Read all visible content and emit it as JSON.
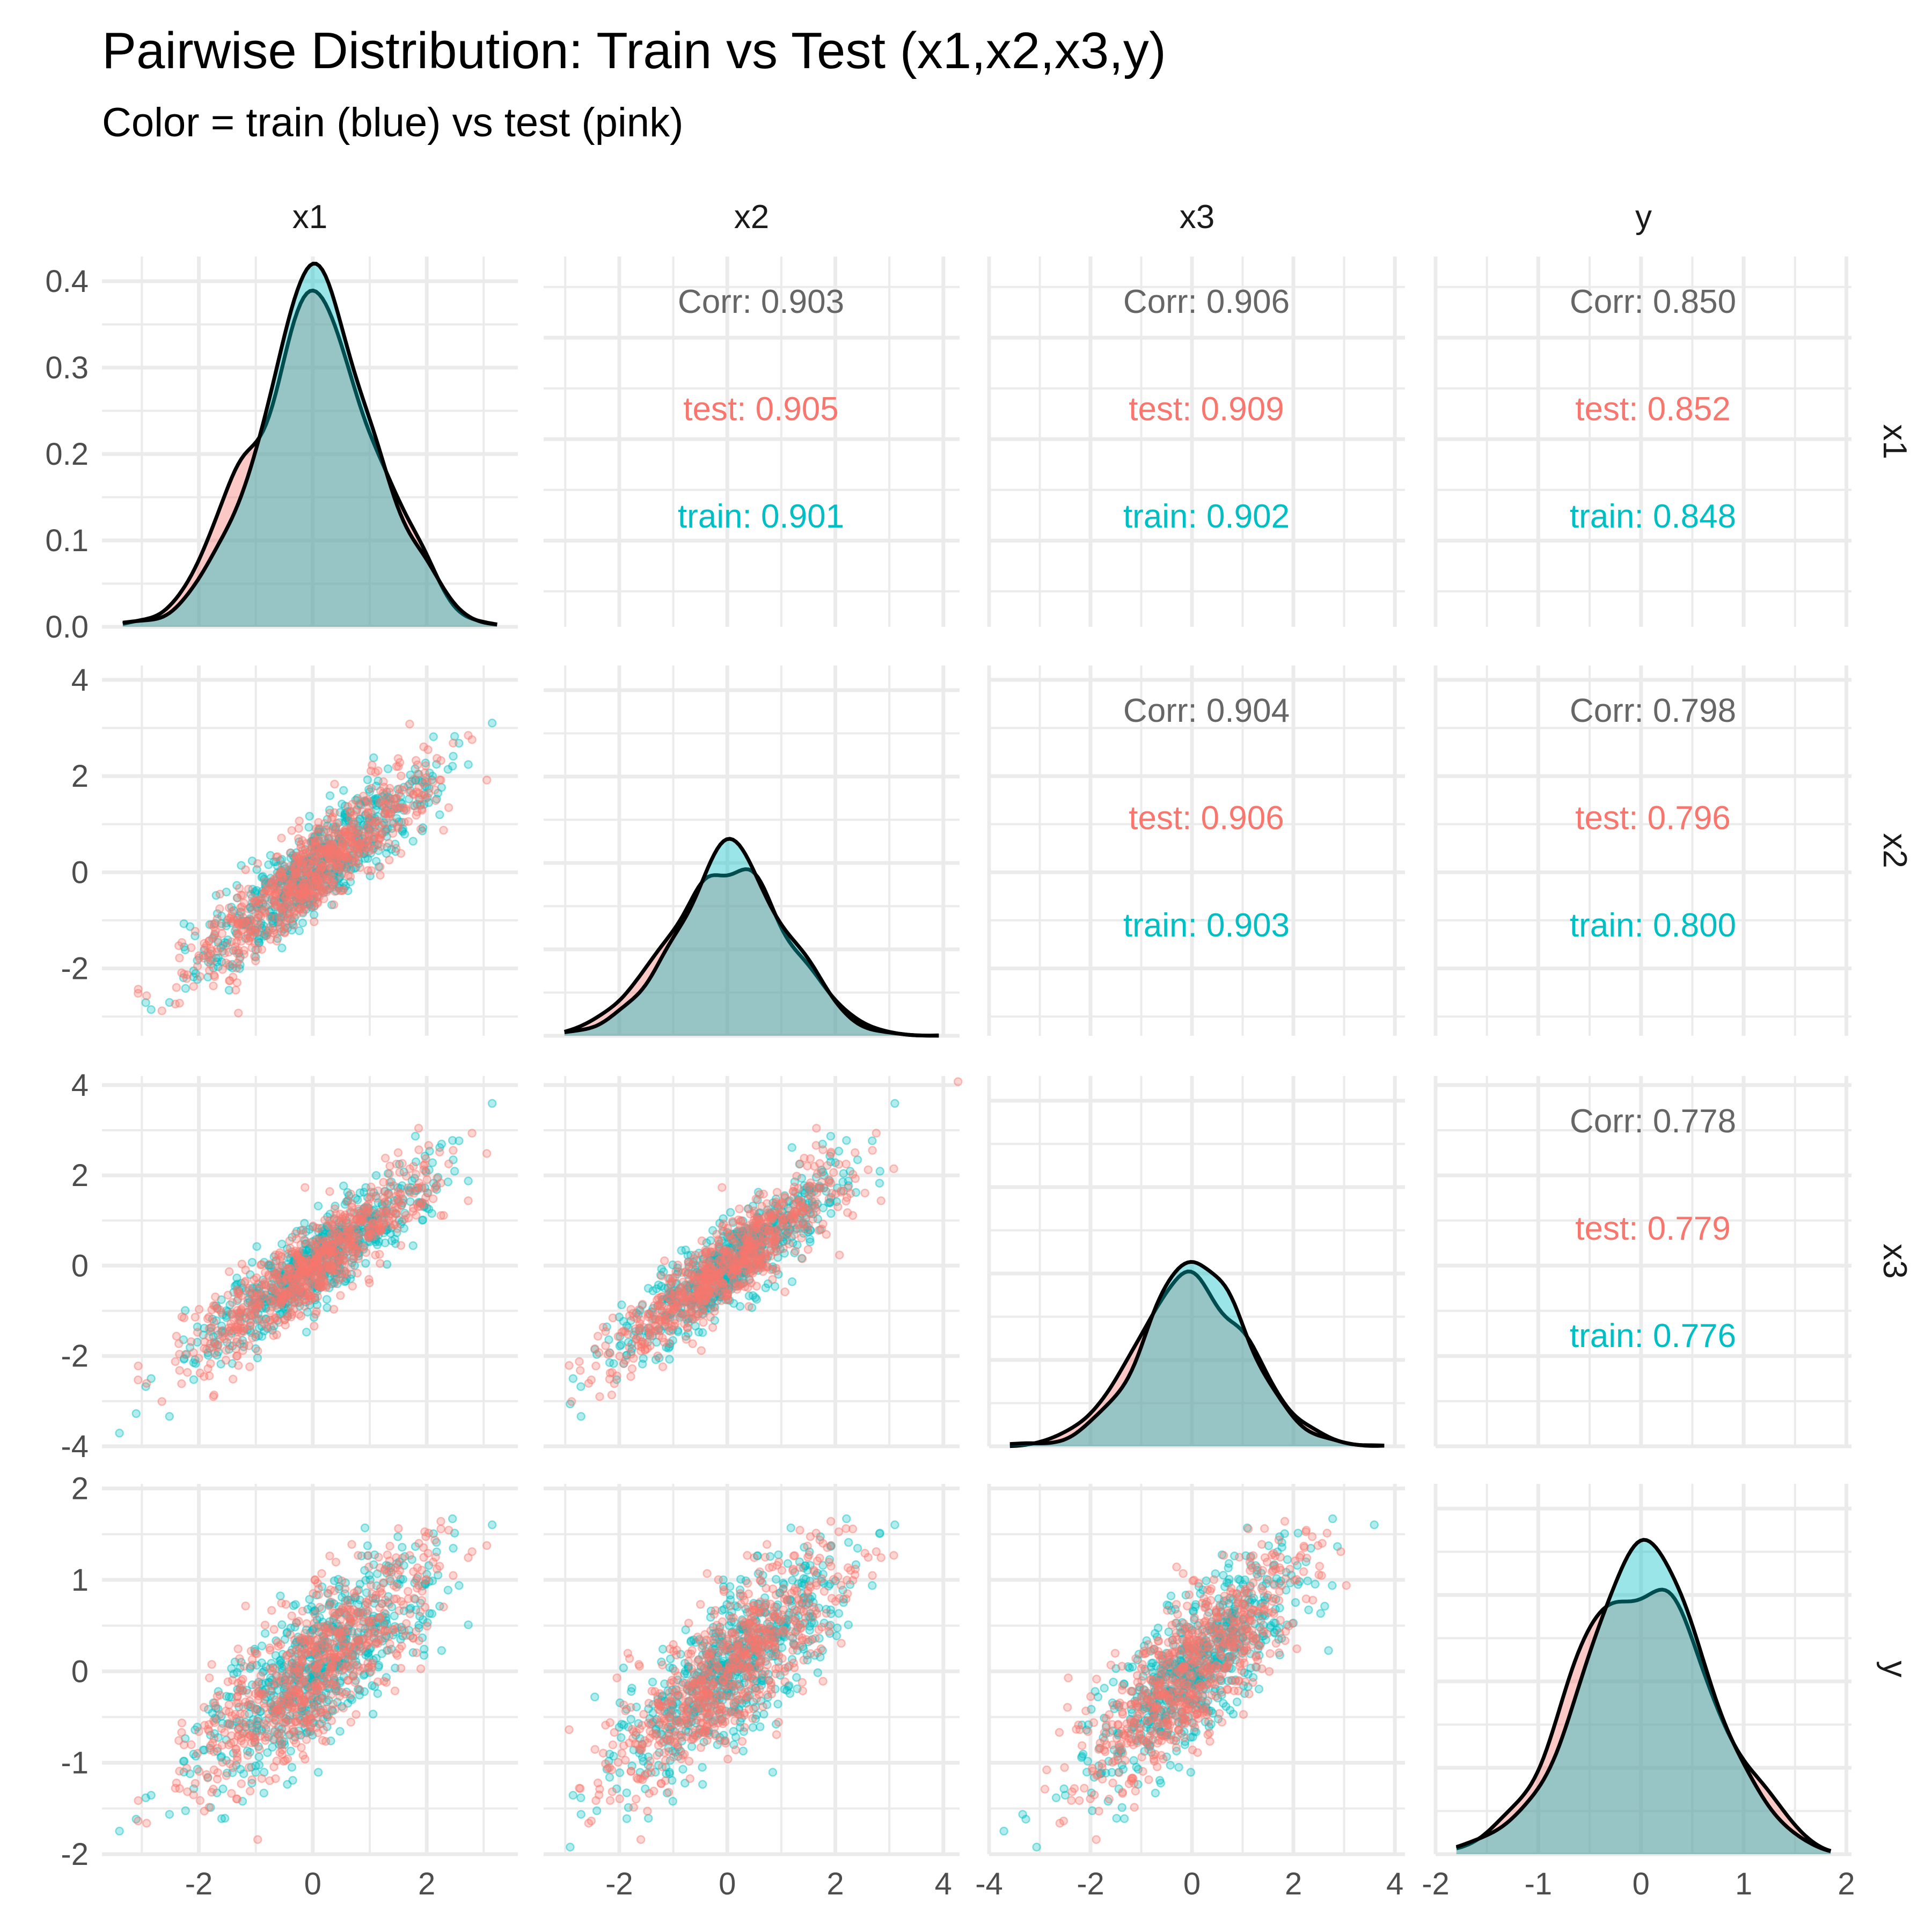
{
  "chart_data": {
    "type": "scatter",
    "subtype": "pairs-matrix",
    "title": "Pairwise Distribution: Train vs Test (x1,x2,x3,y)",
    "subtitle": "Color = train (blue) vs test (pink)",
    "variables": [
      "x1",
      "x2",
      "x3",
      "y"
    ],
    "groups": [
      {
        "name": "train",
        "color": "#00BFC4"
      },
      {
        "name": "test",
        "color": "#F8766D"
      }
    ],
    "overall_corr_color": "#666666",
    "axes": {
      "x1": {
        "range": [
          -3.7,
          3.6
        ],
        "ticks": [
          "-2",
          "0",
          "2"
        ],
        "tick_values": [
          -2,
          0,
          2
        ]
      },
      "x2": {
        "range": [
          -3.4,
          4.3
        ],
        "ticks": [
          "-2",
          "0",
          "2",
          "4"
        ],
        "tick_values": [
          -2,
          0,
          2,
          4
        ]
      },
      "x3": {
        "range": [
          -4.0,
          4.2
        ],
        "ticks": [
          "-4",
          "-2",
          "0",
          "2",
          "4"
        ],
        "tick_values": [
          -4,
          -2,
          0,
          2,
          4
        ]
      },
      "y": {
        "range": [
          -2.0,
          2.05
        ],
        "ticks": [
          "-2",
          "-1",
          "0",
          "1",
          "2"
        ],
        "tick_values": [
          -2,
          -1,
          0,
          1,
          2
        ]
      }
    },
    "density_y_axis": {
      "ticks": [
        "0.0",
        "0.1",
        "0.2",
        "0.3",
        "0.4"
      ],
      "tick_values": [
        0,
        0.1,
        0.2,
        0.3,
        0.4
      ],
      "range": [
        0,
        0.42
      ]
    },
    "correlations": [
      {
        "row": "x1",
        "col": "x2",
        "corr": "Corr: 0.903",
        "test": "test: 0.905",
        "train": "train: 0.901"
      },
      {
        "row": "x1",
        "col": "x3",
        "corr": "Corr: 0.906",
        "test": "test: 0.909",
        "train": "train: 0.902"
      },
      {
        "row": "x1",
        "col": "y",
        "corr": "Corr: 0.850",
        "test": "test: 0.852",
        "train": "train: 0.848"
      },
      {
        "row": "x2",
        "col": "x3",
        "corr": "Corr: 0.904",
        "test": "test: 0.906",
        "train": "train: 0.903"
      },
      {
        "row": "x2",
        "col": "y",
        "corr": "Corr: 0.798",
        "test": "test: 0.796",
        "train": "train: 0.800"
      },
      {
        "row": "x3",
        "col": "y",
        "corr": "Corr: 0.778",
        "test": "test: 0.779",
        "train": "train: 0.776"
      }
    ],
    "density_peaks": {
      "x1": {
        "train": 0.4,
        "test": 0.37
      },
      "x2": {
        "note": "bimodal-looking peaks near -0.4 and 0.4 (train), test peak near 0.1"
      },
      "x3": {
        "note": "train peak slightly higher near 0"
      },
      "y": {
        "note": "broad, two shallow peaks near -0.3 (test) and 0.3 (train)"
      }
    },
    "legend": "none",
    "grid": true
  }
}
